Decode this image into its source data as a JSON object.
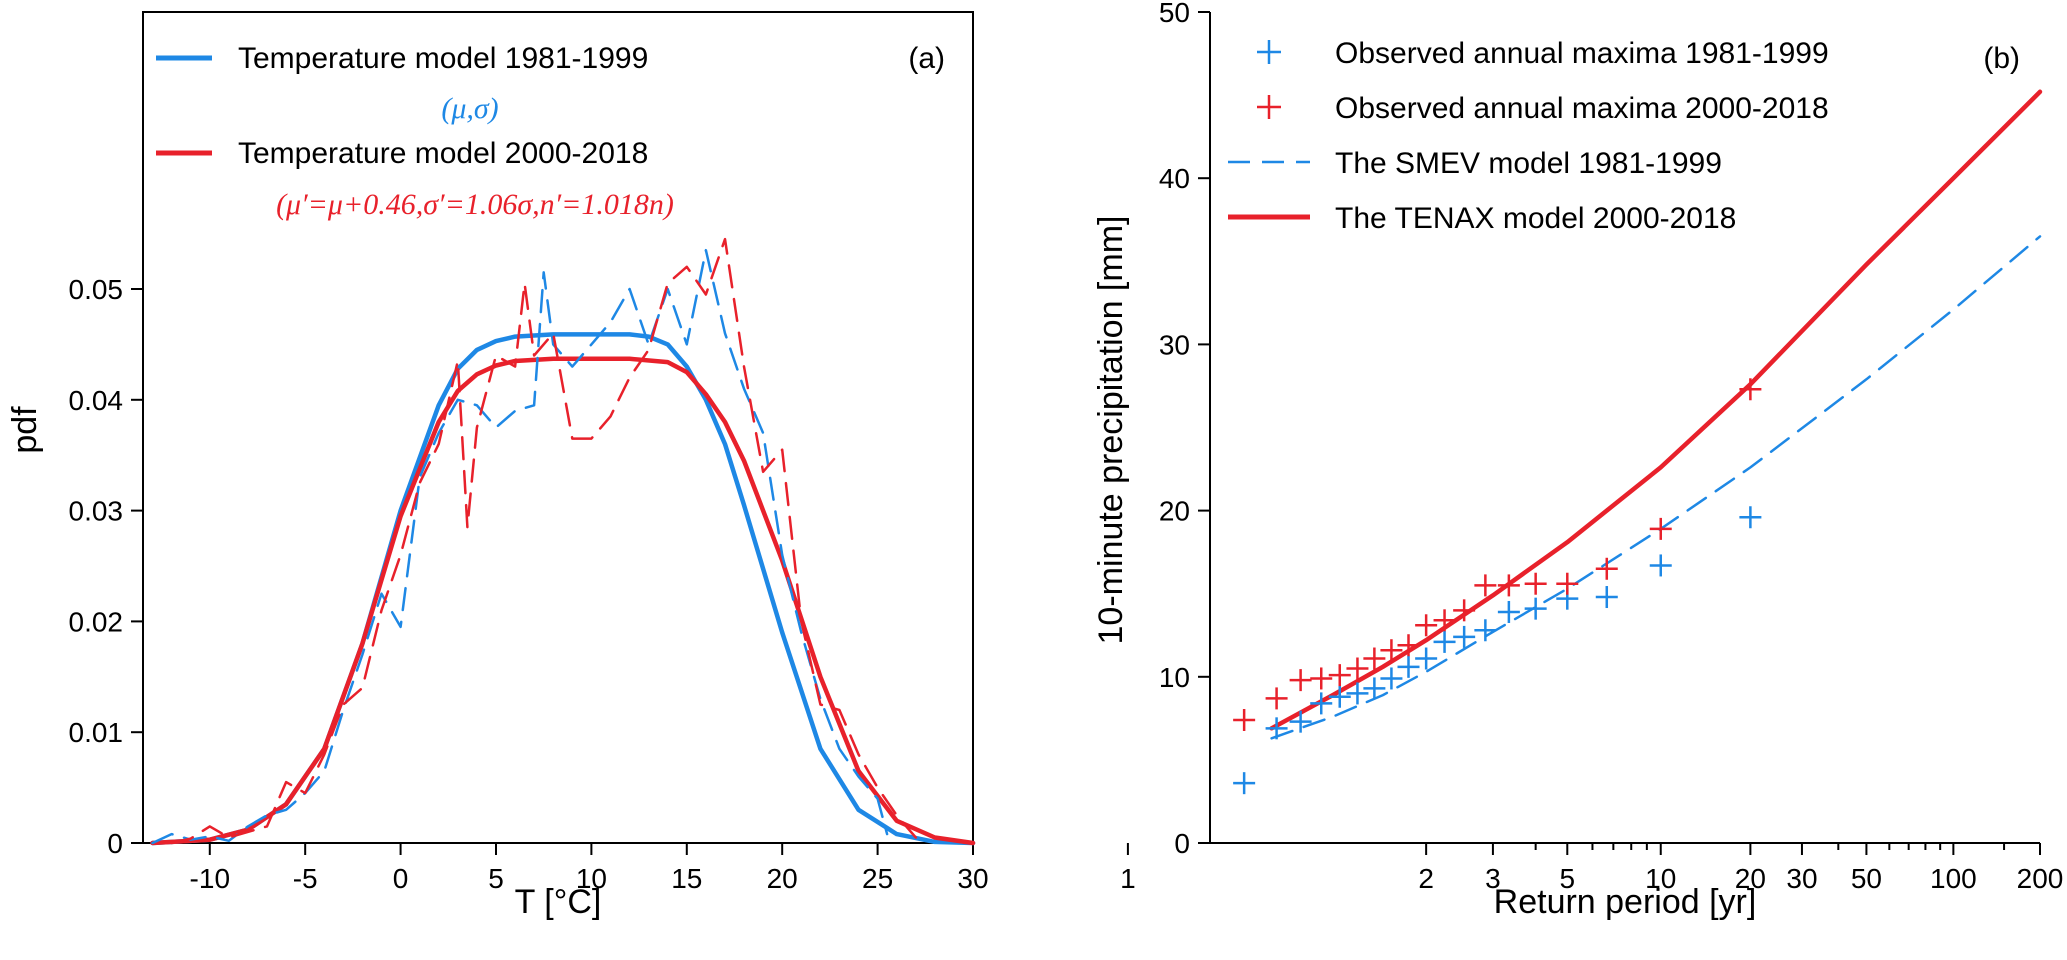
{
  "colors": {
    "blue": "#1e88e5",
    "red": "#e8212b"
  },
  "chart_data": [
    {
      "id": "a",
      "type": "line",
      "panel_label": "(a)",
      "xlabel": "T [°C]",
      "ylabel": "pdf",
      "xlim": [
        -13.5,
        30
      ],
      "ylim": [
        0,
        0.075
      ],
      "xticks": [
        -10,
        -5,
        0,
        5,
        10,
        15,
        20,
        25,
        30
      ],
      "xtick_labels": [
        "-10",
        "-5",
        "0",
        "5",
        "10",
        "15",
        "20",
        "25",
        "30"
      ],
      "yticks": [
        0,
        0.01,
        0.02,
        0.03,
        0.04,
        0.05
      ],
      "ytick_labels": [
        "0",
        "0.01",
        "0.02",
        "0.03",
        "0.04",
        "0.05"
      ],
      "legend": {
        "placement": "top-left",
        "entries": [
          {
            "label": "Temperature model 1981-1999",
            "color": "#1e88e5",
            "style": "solid",
            "param": "(μ,σ)"
          },
          {
            "label": "Temperature model 2000-2018",
            "color": "#e8212b",
            "style": "solid",
            "param": "(μ′=μ+0.46,σ′=1.06σ,n′=1.018n)"
          }
        ]
      },
      "series": [
        {
          "color": "#1e88e5",
          "style": "solid",
          "width": 4.5,
          "x": [
            -13,
            -10,
            -8,
            -6,
            -4,
            -2,
            0,
            2,
            3,
            4,
            5,
            6,
            8,
            10,
            12,
            13,
            14,
            15,
            16,
            17,
            18,
            20,
            22,
            24,
            26,
            28,
            30
          ],
          "y": [
            0,
            0.0003,
            0.0012,
            0.0035,
            0.0085,
            0.018,
            0.03,
            0.0395,
            0.0428,
            0.0445,
            0.0453,
            0.0457,
            0.0459,
            0.0459,
            0.0459,
            0.0457,
            0.045,
            0.043,
            0.04,
            0.036,
            0.0305,
            0.019,
            0.0085,
            0.003,
            0.0008,
            0.0001,
            0
          ]
        },
        {
          "color": "#e8212b",
          "style": "solid",
          "width": 4.5,
          "x": [
            -13,
            -10,
            -8,
            -6,
            -4,
            -2,
            0,
            2,
            3,
            4,
            5,
            6,
            8,
            10,
            12,
            14,
            15,
            16,
            17,
            18,
            20,
            22,
            24,
            26,
            28,
            30
          ],
          "y": [
            0,
            0.0003,
            0.0012,
            0.0035,
            0.0085,
            0.018,
            0.0295,
            0.038,
            0.0408,
            0.0423,
            0.0431,
            0.0435,
            0.0437,
            0.0437,
            0.0437,
            0.0434,
            0.0425,
            0.0405,
            0.038,
            0.0345,
            0.0255,
            0.015,
            0.0065,
            0.002,
            0.0005,
            0
          ]
        },
        {
          "color": "#1e88e5",
          "style": "dashed",
          "width": 2.5,
          "x": [
            -13,
            -12,
            -11,
            -10,
            -9,
            -8,
            -7,
            -6,
            -5,
            -4,
            -3,
            -2,
            -1,
            0,
            1,
            2,
            3,
            4,
            5,
            6,
            7,
            7.5,
            8,
            9,
            10,
            11,
            12,
            13,
            14,
            15,
            16,
            17,
            18,
            19,
            20,
            21,
            22,
            23,
            24,
            25,
            25.5
          ],
          "y": [
            0,
            0.0008,
            0.0003,
            0.0006,
            0.0002,
            0.0015,
            0.0025,
            0.003,
            0.0045,
            0.0065,
            0.012,
            0.017,
            0.0225,
            0.0195,
            0.033,
            0.037,
            0.04,
            0.0395,
            0.0375,
            0.039,
            0.0395,
            0.0515,
            0.045,
            0.043,
            0.045,
            0.047,
            0.05,
            0.045,
            0.05,
            0.045,
            0.0535,
            0.046,
            0.041,
            0.037,
            0.026,
            0.019,
            0.013,
            0.0085,
            0.006,
            0.004,
            0.0008
          ]
        },
        {
          "color": "#e8212b",
          "style": "dashed",
          "width": 2.5,
          "x": [
            -12,
            -11,
            -10,
            -9,
            -8,
            -7,
            -6,
            -5,
            -4,
            -3,
            -2,
            -1,
            0,
            1,
            2,
            3,
            3.5,
            4,
            5,
            6,
            6.5,
            7,
            8,
            9,
            10,
            11,
            12,
            13,
            14,
            15,
            16,
            17,
            18,
            19,
            20,
            21,
            22,
            23,
            24,
            25,
            26,
            27
          ],
          "y": [
            0,
            0.0004,
            0.0015,
            0.0005,
            0.001,
            0.0015,
            0.0055,
            0.0045,
            0.008,
            0.0125,
            0.014,
            0.021,
            0.026,
            0.0325,
            0.036,
            0.0435,
            0.0285,
            0.0375,
            0.044,
            0.043,
            0.0505,
            0.044,
            0.046,
            0.0365,
            0.0365,
            0.0385,
            0.042,
            0.0445,
            0.0505,
            0.052,
            0.0495,
            0.0545,
            0.043,
            0.0335,
            0.0355,
            0.02,
            0.0125,
            0.012,
            0.008,
            0.005,
            0.0025,
            0.0005
          ]
        }
      ]
    },
    {
      "id": "b",
      "type": "line",
      "panel_label": "(b)",
      "xlabel": "Return period [yr]",
      "ylabel": "10-minute precipitation [mm]",
      "xscale": "gumbel",
      "xlim": [
        1,
        200
      ],
      "ylim": [
        0,
        50
      ],
      "xticks": [
        1,
        2,
        3,
        5,
        10,
        20,
        30,
        50,
        100,
        200
      ],
      "xtick_labels": [
        "1",
        "2",
        "3",
        "5",
        "10",
        "20",
        "30",
        "50",
        "100",
        "200"
      ],
      "minor_xticks": [
        4,
        6,
        7,
        8,
        9,
        40,
        60,
        70,
        80,
        90,
        150
      ],
      "yticks": [
        0,
        10,
        20,
        30,
        40,
        50
      ],
      "ytick_labels": [
        "0",
        "10",
        "20",
        "30",
        "40",
        "50"
      ],
      "legend": {
        "placement": "top-left",
        "entries": [
          {
            "label": "Observed annual maxima 1981-1999",
            "color": "#1e88e5",
            "style": "marker"
          },
          {
            "label": "Observed annual maxima 2000-2018",
            "color": "#e8212b",
            "style": "marker"
          },
          {
            "label": "The SMEV model 1981-1999",
            "color": "#1e88e5",
            "style": "dashed"
          },
          {
            "label": "The TENAX model 2000-2018",
            "color": "#e8212b",
            "style": "solid"
          }
        ]
      },
      "series": [
        {
          "color": "#1e88e5",
          "style": "dashed",
          "width": 2.5,
          "x": [
            1.1,
            1.3,
            1.6,
            2,
            3,
            5,
            10,
            20,
            50,
            100,
            200
          ],
          "y": [
            6.3,
            7.6,
            8.9,
            10.3,
            12.7,
            15.3,
            18.9,
            22.6,
            27.9,
            32.1,
            36.5
          ]
        },
        {
          "color": "#e8212b",
          "style": "solid",
          "width": 4.5,
          "x": [
            1.1,
            1.3,
            1.6,
            2,
            3,
            5,
            10,
            20,
            50,
            100,
            200
          ],
          "y": [
            6.9,
            8.9,
            10.6,
            12.2,
            14.9,
            18.1,
            22.6,
            27.6,
            34.8,
            40.0,
            45.2
          ]
        },
        {
          "color": "#1e88e5",
          "style": "marker",
          "x": [
            1.053,
            1.111,
            1.176,
            1.25,
            1.333,
            1.429,
            1.538,
            1.667,
            1.818,
            2.0,
            2.222,
            2.5,
            2.857,
            3.333,
            4.0,
            5.0,
            6.667,
            10.0,
            20.0
          ],
          "y": [
            3.6,
            6.9,
            7.3,
            8.4,
            8.8,
            9.0,
            9.3,
            9.9,
            10.6,
            11.1,
            12.1,
            12.4,
            12.8,
            13.9,
            14.1,
            14.7,
            14.8,
            16.7,
            19.6
          ]
        },
        {
          "color": "#e8212b",
          "style": "marker",
          "x": [
            1.053,
            1.111,
            1.176,
            1.25,
            1.333,
            1.429,
            1.538,
            1.667,
            1.818,
            2.0,
            2.222,
            2.5,
            2.857,
            3.333,
            4.0,
            5.0,
            6.667,
            10.0,
            20.0
          ],
          "y": [
            7.4,
            8.7,
            9.8,
            9.9,
            10.1,
            10.5,
            11.1,
            11.6,
            11.9,
            13.1,
            13.4,
            14.0,
            15.5,
            15.5,
            15.6,
            15.6,
            16.5,
            18.9,
            27.3
          ]
        }
      ]
    }
  ]
}
